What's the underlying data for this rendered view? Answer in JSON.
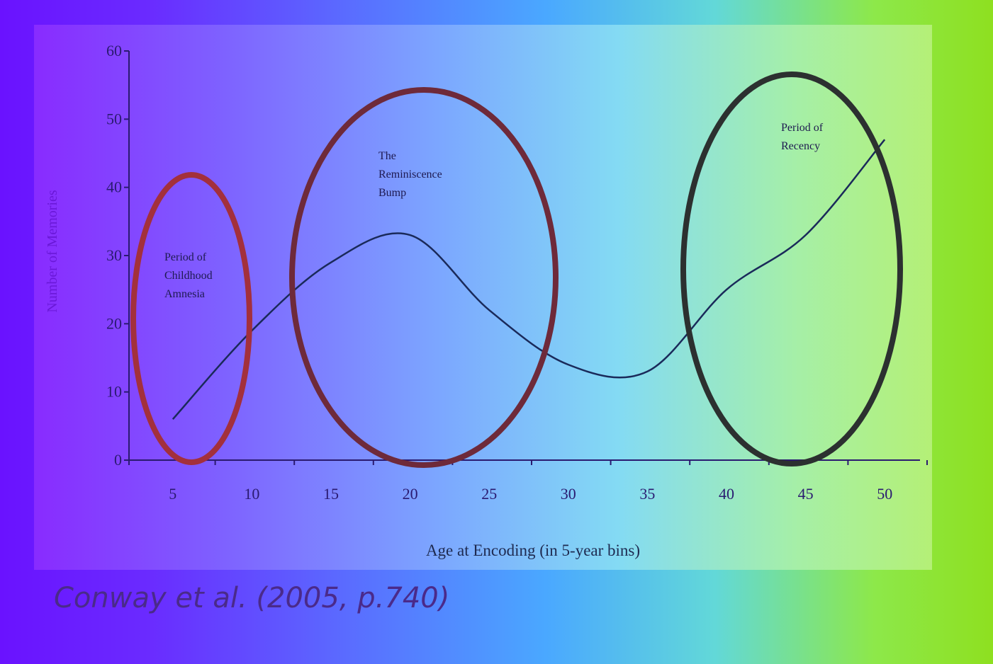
{
  "chart_data": {
    "type": "line",
    "xlabel": "Age at Encoding (in 5-year bins)",
    "ylabel": "Number of Memories",
    "categories": [
      "5",
      "10",
      "15",
      "20",
      "25",
      "30",
      "35",
      "40",
      "45",
      "50"
    ],
    "values": [
      6,
      19,
      29,
      33,
      22,
      14,
      13,
      25,
      33,
      47
    ],
    "ylim": [
      0,
      60
    ],
    "yticks": [
      "0",
      "10",
      "20",
      "30",
      "40",
      "50",
      "60"
    ],
    "grid": false,
    "annotations": [
      {
        "label_lines": [
          "Period of",
          "Childhood",
          "Amnesia"
        ],
        "circle_color": "#a3303c"
      },
      {
        "label_lines": [
          "The",
          "Reminiscence",
          "Bump"
        ],
        "circle_color": "#6e2a3a"
      },
      {
        "label_lines": [
          "Period of",
          "Recency"
        ],
        "circle_color": "#2c3030"
      }
    ]
  },
  "citation": "Conway et al. (2005, p.740)"
}
